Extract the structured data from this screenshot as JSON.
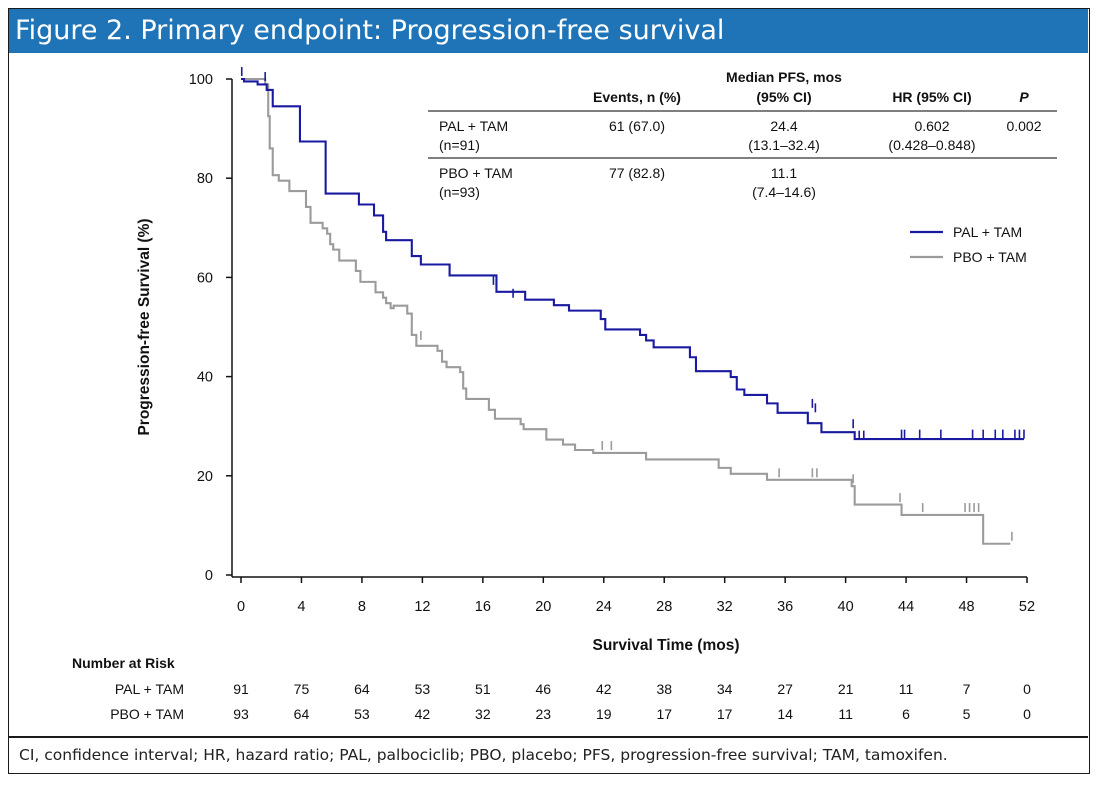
{
  "figure_title": "Figure 2. Primary endpoint: Progression-free survival",
  "footnote": "CI, confidence interval; HR, hazard ratio; PAL, palbociclib; PBO, placebo; PFS, progression-free survival; TAM, tamoxifen.",
  "colors": {
    "header_bg": "#1f73b7",
    "pal": "#1a1aa0",
    "pbo": "#9b9b9b"
  },
  "stats_table": {
    "headers": {
      "events": "Events, n (%)",
      "median_line1": "Median PFS, mos",
      "median_line2": "(95% CI)",
      "hr": "HR (95% CI)",
      "p": "P"
    },
    "rows": [
      {
        "arm": "PAL + TAM",
        "n": "(n=91)",
        "events": "61 (67.0)",
        "median": "24.4",
        "median_ci": "(13.1–32.4)",
        "hr": "0.602",
        "hr_ci": "(0.428–0.848)",
        "p": "0.002"
      },
      {
        "arm": "PBO + TAM",
        "n": "(n=93)",
        "events": "77 (82.8)",
        "median": "11.1",
        "median_ci": "(7.4–14.6)",
        "hr": "",
        "hr_ci": "",
        "p": ""
      }
    ]
  },
  "risk_table": {
    "title": "Number at Risk",
    "rows": [
      {
        "label": "PAL + TAM",
        "values": [
          "91",
          "75",
          "64",
          "53",
          "51",
          "46",
          "42",
          "38",
          "34",
          "27",
          "21",
          "11",
          "7",
          "0"
        ]
      },
      {
        "label": "PBO + TAM",
        "values": [
          "93",
          "64",
          "53",
          "42",
          "32",
          "23",
          "19",
          "17",
          "17",
          "14",
          "11",
          "6",
          "5",
          "0"
        ]
      }
    ]
  },
  "chart_data": {
    "type": "line",
    "subtype": "kaplan-meier step",
    "title": "",
    "xlabel": "Survival Time (mos)",
    "ylabel": "Progression-free Survival (%)",
    "xlim": [
      0,
      52
    ],
    "ylim": [
      0,
      100
    ],
    "xticks": [
      0,
      4,
      8,
      12,
      16,
      20,
      24,
      28,
      32,
      36,
      40,
      44,
      48,
      52
    ],
    "yticks": [
      0,
      20,
      40,
      60,
      80,
      100
    ],
    "legend_position": "right",
    "series": [
      {
        "name": "PAL + TAM",
        "color": "#1a1aa0",
        "steps": [
          [
            0,
            100
          ],
          [
            0.2,
            99.5
          ],
          [
            1.1,
            98.9
          ],
          [
            1.7,
            97.8
          ],
          [
            2.1,
            94.5
          ],
          [
            3.9,
            87.4
          ],
          [
            5.6,
            76.9
          ],
          [
            7.8,
            74.7
          ],
          [
            8.8,
            72.5
          ],
          [
            9.4,
            69.2
          ],
          [
            9.6,
            67.5
          ],
          [
            11.3,
            64.3
          ],
          [
            11.9,
            62.6
          ],
          [
            13.8,
            60.4
          ],
          [
            16.9,
            57.1
          ],
          [
            18.8,
            55.5
          ],
          [
            20.7,
            54.4
          ],
          [
            21.7,
            53.3
          ],
          [
            23.8,
            51.6
          ],
          [
            24.1,
            49.5
          ],
          [
            26.4,
            48.4
          ],
          [
            26.8,
            47.3
          ],
          [
            27.3,
            45.9
          ],
          [
            29.7,
            43.9
          ],
          [
            30.1,
            41.1
          ],
          [
            32.4,
            39.9
          ],
          [
            32.8,
            37.4
          ],
          [
            33.3,
            36.3
          ],
          [
            34.8,
            34.6
          ],
          [
            35.5,
            32.7
          ],
          [
            37.5,
            30.6
          ],
          [
            38.4,
            28.8
          ],
          [
            40.6,
            27.4
          ],
          [
            51.8,
            27.4
          ]
        ],
        "censor_marks": [
          [
            0.05,
            101.5
          ],
          [
            1.6,
            100.5
          ],
          [
            16.7,
            59.4
          ],
          [
            18.0,
            56.8
          ],
          [
            37.8,
            34.6
          ],
          [
            38.0,
            33.7
          ],
          [
            40.5,
            30.5
          ],
          [
            40.9,
            28.2
          ],
          [
            41.2,
            28.2
          ],
          [
            43.7,
            28.4
          ],
          [
            43.9,
            28.4
          ],
          [
            44.9,
            28.4
          ],
          [
            46.3,
            28.4
          ],
          [
            48.4,
            28.4
          ],
          [
            49.1,
            28.4
          ],
          [
            49.9,
            28.4
          ],
          [
            50.4,
            28.4
          ],
          [
            51.2,
            28.4
          ],
          [
            51.5,
            28.4
          ],
          [
            51.8,
            28.4
          ]
        ]
      },
      {
        "name": "PBO + TAM",
        "color": "#9b9b9b",
        "steps": [
          [
            0,
            100
          ],
          [
            1.6,
            98.9
          ],
          [
            1.8,
            92.5
          ],
          [
            1.9,
            86.0
          ],
          [
            2.1,
            80.6
          ],
          [
            2.5,
            79.5
          ],
          [
            3.2,
            77.4
          ],
          [
            4.3,
            74.2
          ],
          [
            4.6,
            71.0
          ],
          [
            5.4,
            69.9
          ],
          [
            5.7,
            68.8
          ],
          [
            5.9,
            66.7
          ],
          [
            6.1,
            65.6
          ],
          [
            6.5,
            63.4
          ],
          [
            7.6,
            61.3
          ],
          [
            7.9,
            59.1
          ],
          [
            8.9,
            57.0
          ],
          [
            9.4,
            55.9
          ],
          [
            9.6,
            54.8
          ],
          [
            9.9,
            53.8
          ],
          [
            10.1,
            54.3
          ],
          [
            11.0,
            52.7
          ],
          [
            11.3,
            48.4
          ],
          [
            11.6,
            46.2
          ],
          [
            13.0,
            45.2
          ],
          [
            13.3,
            43.0
          ],
          [
            13.6,
            41.9
          ],
          [
            14.5,
            40.9
          ],
          [
            14.7,
            37.6
          ],
          [
            14.9,
            35.5
          ],
          [
            16.4,
            33.3
          ],
          [
            16.8,
            31.5
          ],
          [
            18.5,
            30.4
          ],
          [
            18.7,
            29.4
          ],
          [
            20.2,
            27.3
          ],
          [
            21.3,
            26.3
          ],
          [
            22.1,
            25.2
          ],
          [
            23.3,
            24.6
          ],
          [
            26.8,
            23.3
          ],
          [
            31.6,
            21.6
          ],
          [
            32.4,
            20.4
          ],
          [
            34.8,
            19.2
          ],
          [
            40.4,
            17.9
          ],
          [
            40.6,
            14.2
          ],
          [
            43.7,
            12.1
          ],
          [
            48.6,
            12.1
          ],
          [
            49.1,
            6.3
          ],
          [
            50.9,
            6.3
          ]
        ],
        "censor_marks": [
          [
            11.9,
            48.3
          ],
          [
            23.9,
            26.1
          ],
          [
            24.5,
            26.1
          ],
          [
            35.6,
            20.6
          ],
          [
            37.8,
            20.6
          ],
          [
            38.1,
            20.6
          ],
          [
            40.5,
            19.4
          ],
          [
            43.6,
            15.6
          ],
          [
            45.1,
            13.6
          ],
          [
            47.9,
            13.6
          ],
          [
            48.2,
            13.6
          ],
          [
            48.5,
            13.6
          ],
          [
            48.8,
            13.6
          ],
          [
            51.0,
            7.8
          ]
        ]
      }
    ]
  }
}
